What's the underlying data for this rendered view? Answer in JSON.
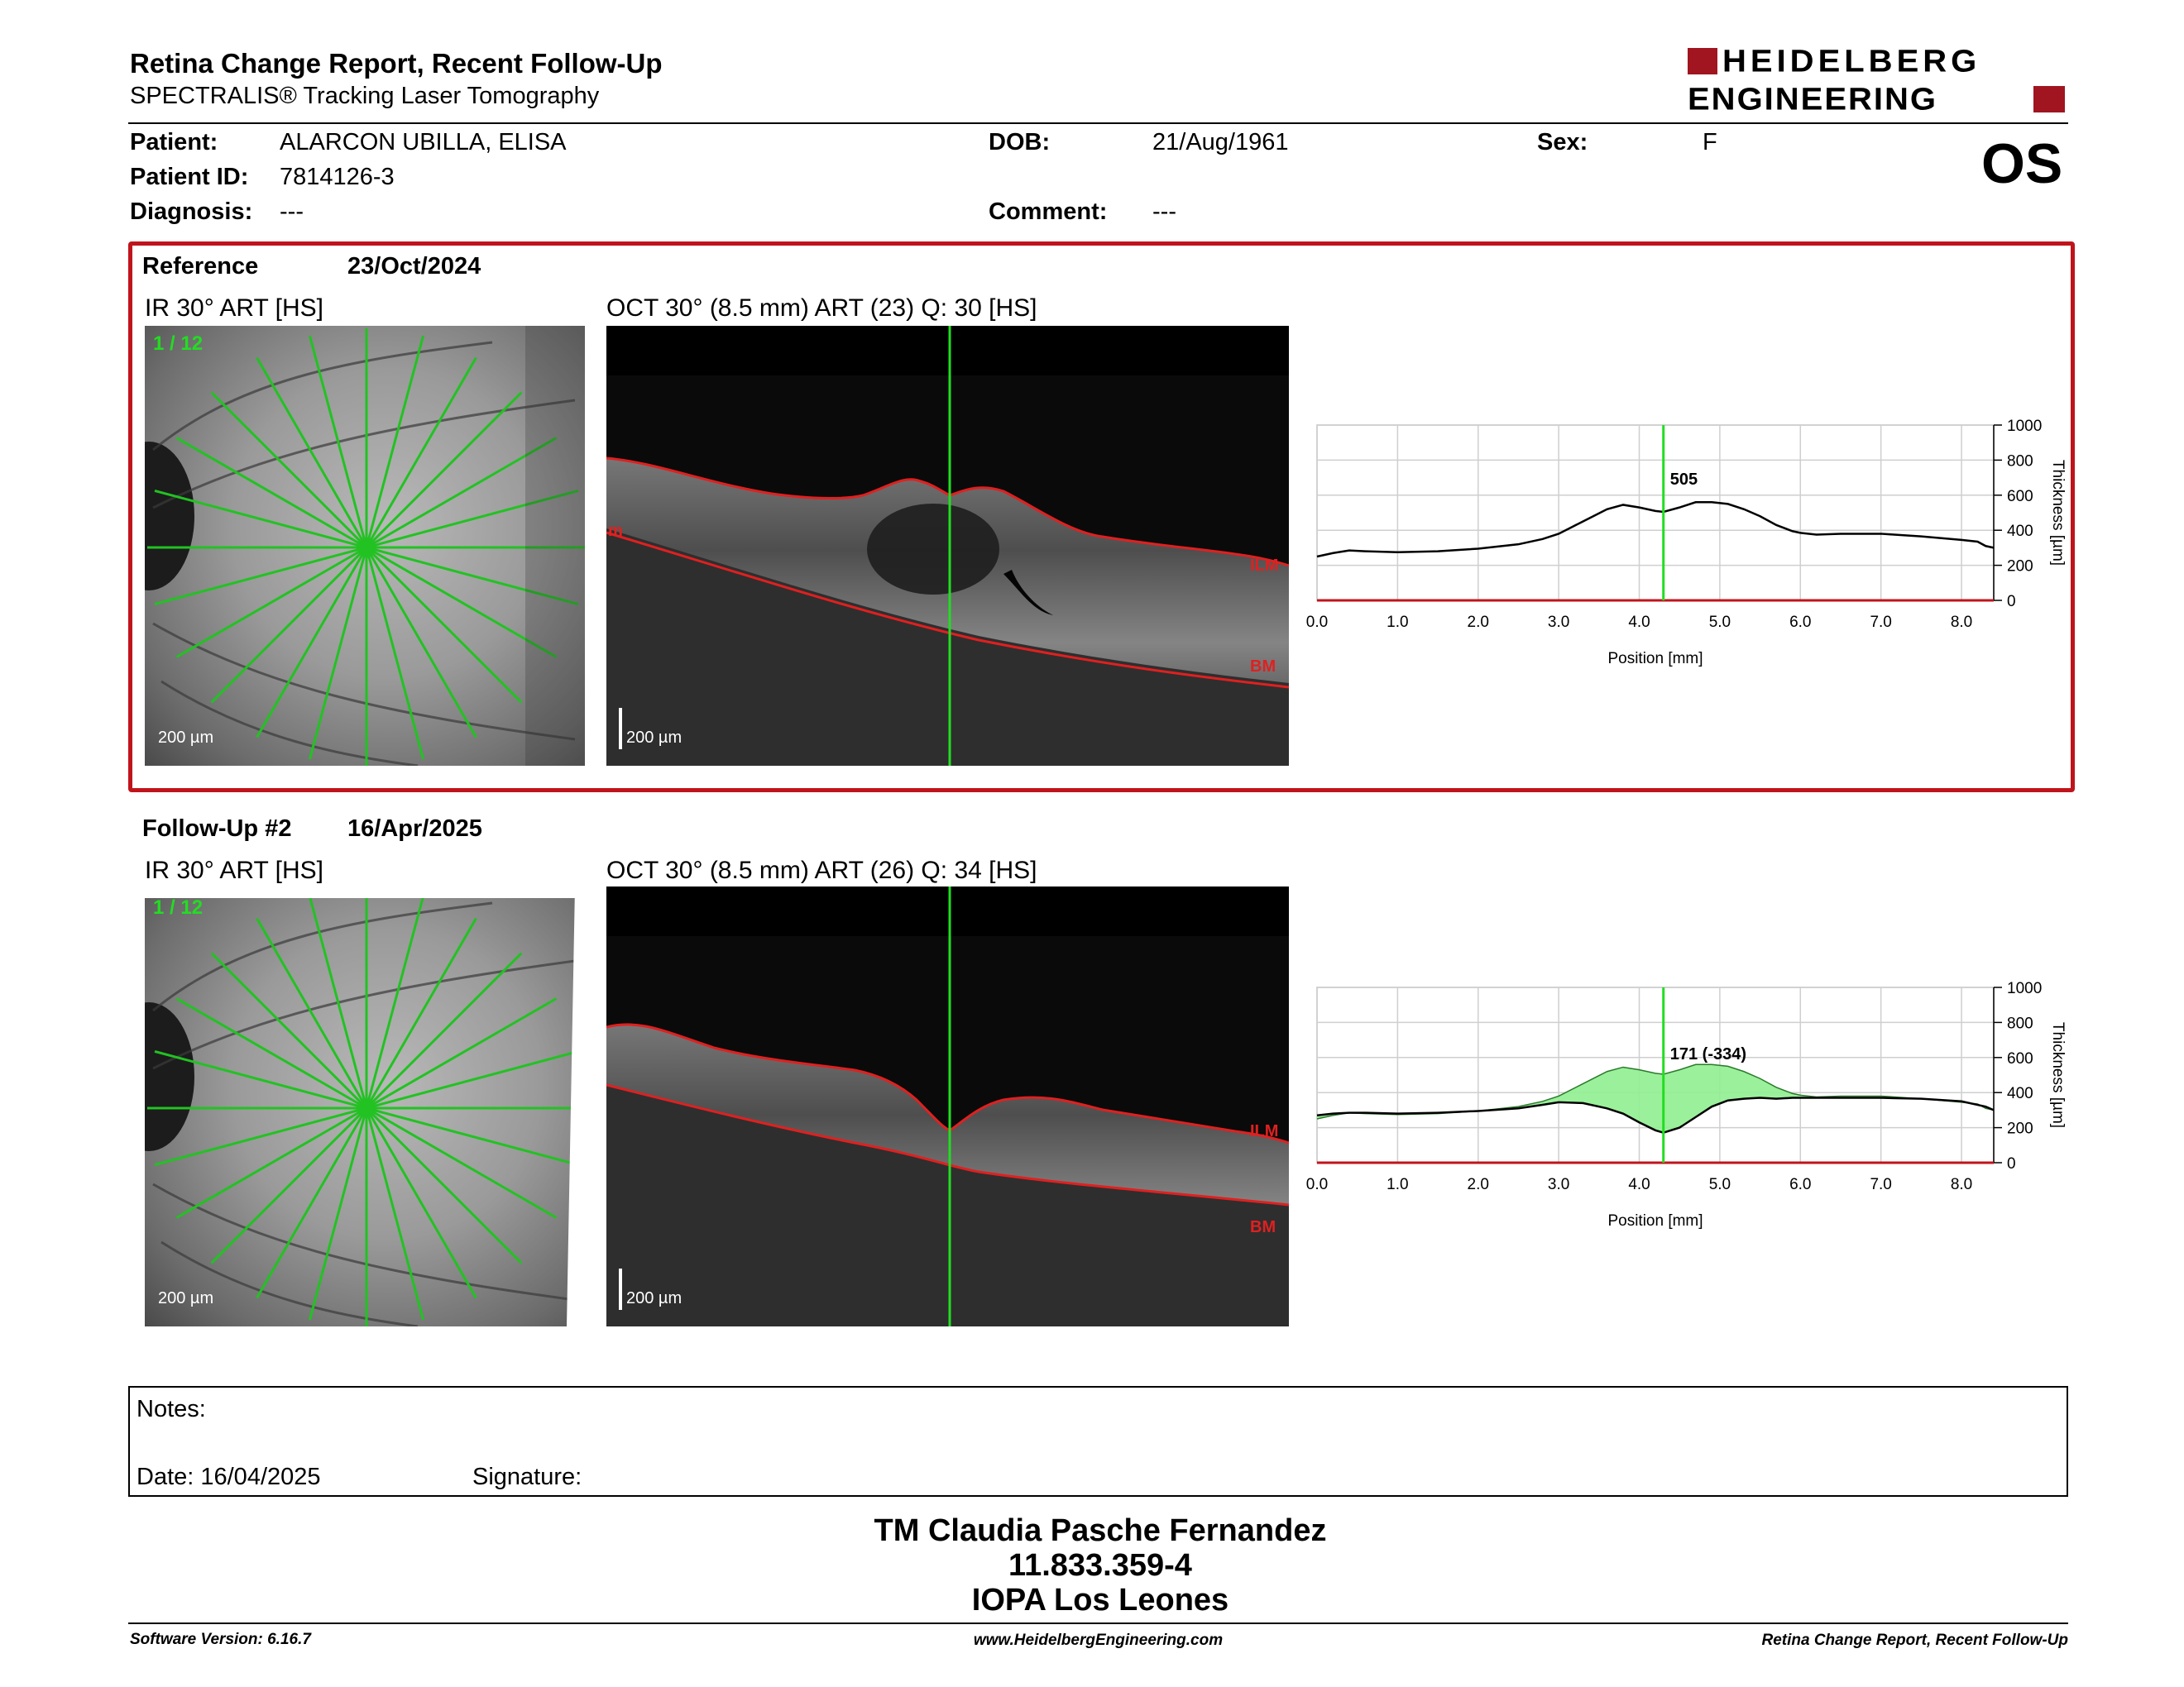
{
  "header": {
    "title": "Retina Change Report, Recent Follow-Up",
    "subtitle": "SPECTRALIS® Tracking Laser Tomography",
    "logo_line1": "HEIDELBERG",
    "logo_line2": "ENGINEERING",
    "eye": "OS"
  },
  "patient": {
    "patient_label": "Patient:",
    "patient_value": "ALARCON UBILLA, ELISA",
    "id_label": "Patient ID:",
    "id_value": "7814126-3",
    "diagnosis_label": "Diagnosis:",
    "diagnosis_value": "---",
    "dob_label": "DOB:",
    "dob_value": "21/Aug/1961",
    "comment_label": "Comment:",
    "comment_value": "---",
    "sex_label": "Sex:",
    "sex_value": "F"
  },
  "reference": {
    "label": "Reference",
    "date": "23/Oct/2024",
    "ir_title": "IR 30° ART [HS]",
    "oct_title": "OCT 30° (8.5 mm) ART (23) Q: 30 [HS]",
    "scan_index": "1 / 12",
    "ir_scale": "200 µm",
    "oct_scale": "200 µm",
    "ilm_label": "ILM",
    "bm_label": "BM",
    "partial_label": "m",
    "accent": "#c0141c"
  },
  "followup": {
    "label": "Follow-Up #2",
    "date": "16/Apr/2025",
    "ir_title": "IR 30° ART [HS]",
    "oct_title": "OCT 30° (8.5 mm) ART (26) Q: 34 [HS]",
    "scan_index": "1 / 12",
    "ir_scale": "200 µm",
    "oct_scale": "200 µm",
    "ilm_label": "ILM",
    "bm_label": "BM"
  },
  "chart_data": [
    {
      "type": "line",
      "xlabel": "Position [mm]",
      "ylabel": "Thickness [µm]",
      "xlim": [
        0,
        8.4
      ],
      "ylim": [
        0,
        1000
      ],
      "x_ticks": [
        "0.0",
        "1.0",
        "2.0",
        "3.0",
        "4.0",
        "5.0",
        "6.0",
        "7.0",
        "8.0"
      ],
      "y_ticks": [
        "0",
        "200",
        "400",
        "600",
        "800",
        "1000"
      ],
      "marker_x": 4.3,
      "marker_label": "505",
      "series": [
        {
          "x": [
            0,
            0.2,
            0.4,
            0.6,
            1.0,
            1.5,
            2.0,
            2.5,
            2.8,
            3.0,
            3.3,
            3.6,
            3.8,
            4.0,
            4.2,
            4.3,
            4.5,
            4.7,
            4.9,
            5.1,
            5.3,
            5.5,
            5.7,
            5.9,
            6.0,
            6.2,
            6.5,
            7.0,
            7.5,
            8.0,
            8.2,
            8.3,
            8.4
          ],
          "values": [
            250,
            270,
            285,
            280,
            275,
            280,
            295,
            320,
            350,
            380,
            450,
            520,
            545,
            530,
            510,
            505,
            530,
            560,
            560,
            550,
            520,
            480,
            430,
            395,
            385,
            375,
            380,
            380,
            365,
            345,
            335,
            310,
            300
          ]
        }
      ]
    },
    {
      "type": "area",
      "xlabel": "Position [mm]",
      "ylabel": "Thickness [µm]",
      "xlim": [
        0,
        8.4
      ],
      "ylim": [
        0,
        1000
      ],
      "x_ticks": [
        "0.0",
        "1.0",
        "2.0",
        "3.0",
        "4.0",
        "5.0",
        "6.0",
        "7.0",
        "8.0"
      ],
      "y_ticks": [
        "0",
        "200",
        "400",
        "600",
        "800",
        "1000"
      ],
      "marker_x": 4.3,
      "marker_label": "171 (-334)",
      "fill_color": "#90ee90",
      "series": [
        {
          "x": [
            0,
            0.2,
            0.4,
            0.6,
            1.0,
            1.5,
            2.0,
            2.5,
            2.8,
            3.0,
            3.3,
            3.6,
            3.8,
            4.0,
            4.2,
            4.3,
            4.5,
            4.7,
            4.9,
            5.1,
            5.3,
            5.5,
            5.7,
            5.9,
            6.0,
            6.2,
            6.5,
            7.0,
            7.5,
            8.0,
            8.2,
            8.3,
            8.4
          ],
          "values": [
            270,
            280,
            285,
            285,
            280,
            285,
            295,
            310,
            330,
            345,
            340,
            310,
            280,
            230,
            185,
            171,
            200,
            260,
            320,
            355,
            365,
            370,
            365,
            370,
            370,
            370,
            370,
            370,
            365,
            350,
            330,
            320,
            300
          ]
        }
      ]
    }
  ],
  "notes": {
    "notes_label": "Notes:",
    "date_label": "Date: 16/04/2025",
    "signature_label": "Signature:"
  },
  "signature_block": {
    "line1": "TM Claudia Pasche Fernandez",
    "line2": "11.833.359-4",
    "line3": "IOPA Los Leones"
  },
  "footer": {
    "left": "Software Version: 6.16.7",
    "center": "www.HeidelbergEngineering.com",
    "right": "Retina Change Report, Recent Follow-Up"
  }
}
